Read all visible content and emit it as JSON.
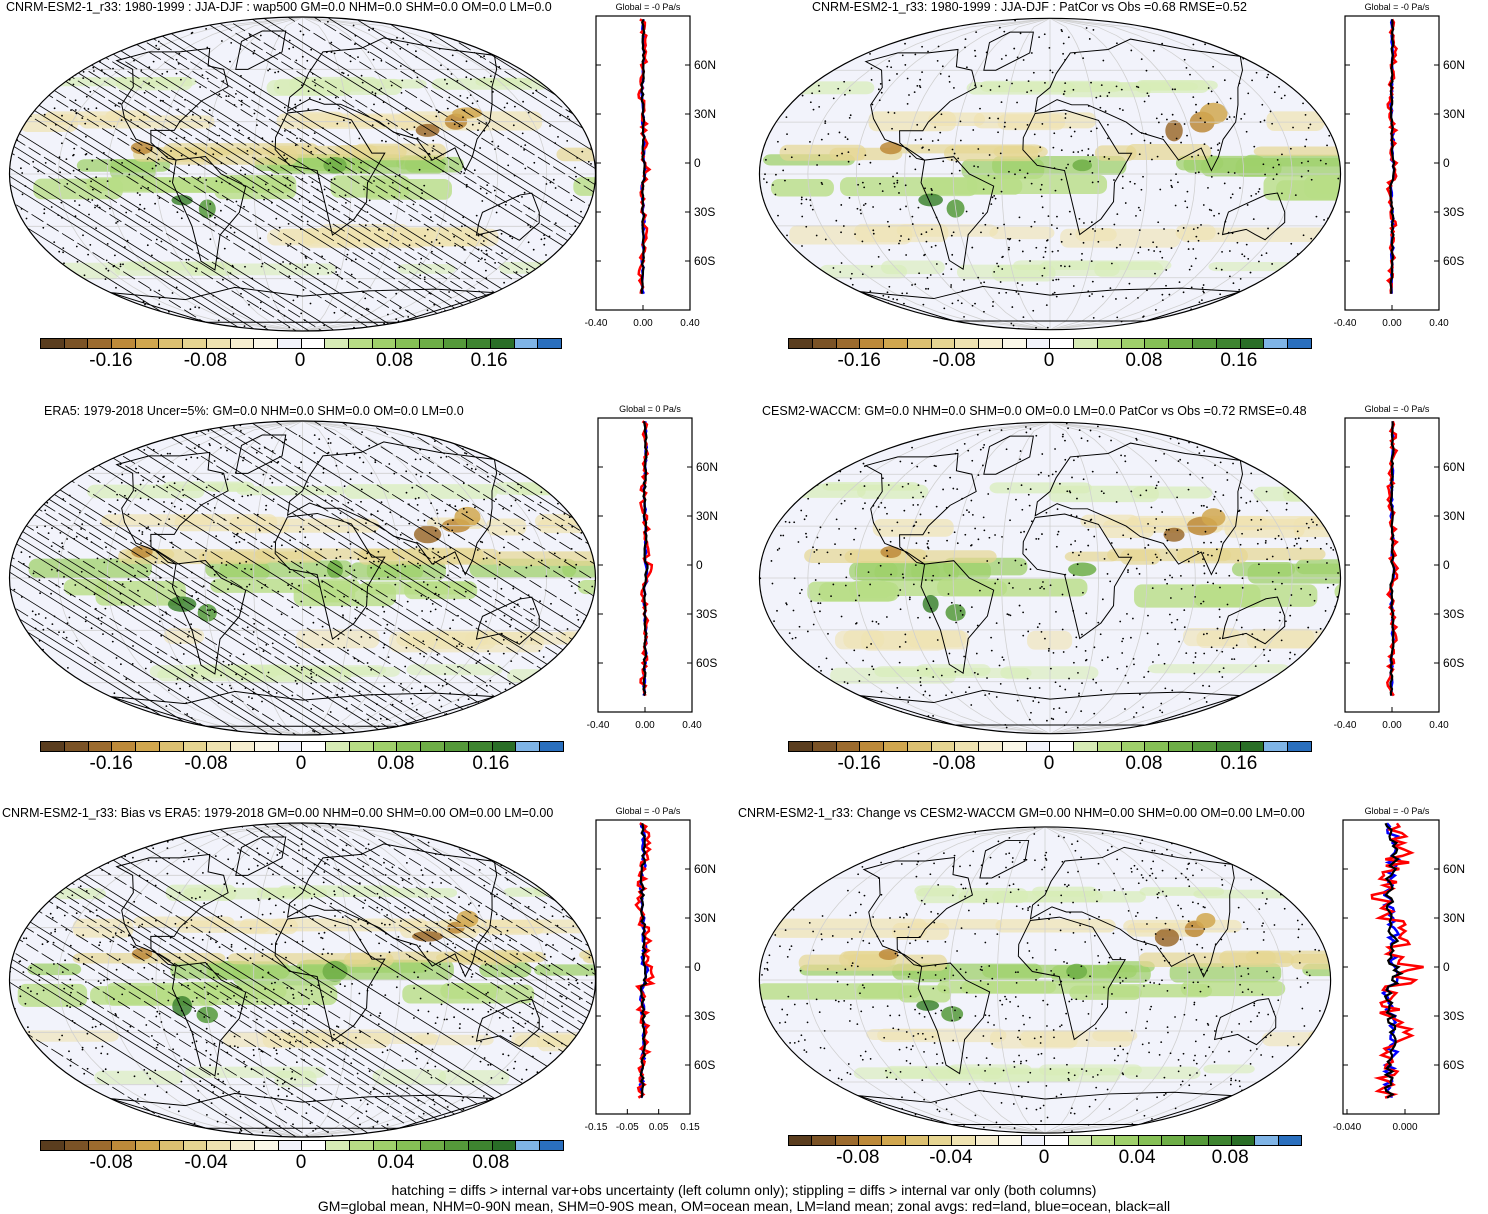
{
  "panels": [
    {
      "id": "p1",
      "title": "CNRM-ESM2-1_r33: 1980-1999 : JJA-DJF : wap500 GM=0.0 NHM=0.0 SHM=0.0 OM=0.0 LM=0.0",
      "zonal_title": "Global = -0 Pa/s",
      "zonal_xticks": [
        "-0.40",
        "0.00",
        "0.40"
      ],
      "lat_ticks": [
        "60N",
        "30N",
        "0",
        "30S",
        "60S"
      ],
      "cbar_labels": [
        "-0.16",
        "-0.08",
        "0",
        "0.08",
        "0.16"
      ],
      "hatched": true
    },
    {
      "id": "p2",
      "title": "CNRM-ESM2-1_r33: 1980-1999 : JJA-DJF : PatCor vs Obs =0.68 RMSE=0.52",
      "zonal_title": "Global = -0 Pa/s",
      "zonal_xticks": [
        "-0.40",
        "0.00",
        "0.40"
      ],
      "lat_ticks": [
        "60N",
        "30N",
        "0",
        "30S",
        "60S"
      ],
      "cbar_labels": [
        "-0.16",
        "-0.08",
        "0",
        "0.08",
        "0.16"
      ],
      "hatched": false
    },
    {
      "id": "p3",
      "title": "ERA5: 1979-2018 Uncer=5%: GM=0.0 NHM=0.0 SHM=0.0 OM=0.0 LM=0.0",
      "zonal_title": "Global = 0 Pa/s",
      "zonal_xticks": [
        "-0.40",
        "0.00",
        "0.40"
      ],
      "lat_ticks": [
        "60N",
        "30N",
        "0",
        "30S",
        "60S"
      ],
      "cbar_labels": [
        "-0.16",
        "-0.08",
        "0",
        "0.08",
        "0.16"
      ],
      "hatched": true
    },
    {
      "id": "p4",
      "title": "CESM2-WACCM: GM=0.0 NHM=0.0 SHM=0.0 OM=0.0 LM=0.0 PatCor vs Obs =0.72 RMSE=0.48",
      "zonal_title": "Global = -0 Pa/s",
      "zonal_xticks": [
        "-0.40",
        "0.00",
        "0.40"
      ],
      "lat_ticks": [
        "60N",
        "30N",
        "0",
        "30S",
        "60S"
      ],
      "cbar_labels": [
        "-0.16",
        "-0.08",
        "0",
        "0.08",
        "0.16"
      ],
      "hatched": false
    },
    {
      "id": "p5",
      "title": "CNRM-ESM2-1_r33: Bias vs ERA5: 1979-2018 GM=0.00 NHM=0.00 SHM=0.00 OM=0.00 LM=0.00",
      "zonal_title": "Global = -0 Pa/s",
      "zonal_xticks": [
        "-0.15",
        "-0.05",
        "0.05",
        "0.15"
      ],
      "lat_ticks": [
        "60N",
        "30N",
        "0",
        "30S",
        "60S"
      ],
      "cbar_labels": [
        "-0.08",
        "-0.04",
        "0",
        "0.04",
        "0.08"
      ],
      "hatched": true
    },
    {
      "id": "p6",
      "title": "CNRM-ESM2-1_r33: Change vs CESM2-WACCM GM=0.00 NHM=0.00 SHM=0.00 OM=0.00 LM=0.00",
      "zonal_title": "Global = -0 Pa/s",
      "zonal_xticks": [
        "-0.040",
        "0.000"
      ],
      "lat_ticks": [
        "60N",
        "30N",
        "0",
        "30S",
        "60S"
      ],
      "cbar_labels": [
        "-0.08",
        "-0.04",
        "0",
        "0.04",
        "0.08"
      ],
      "hatched": false
    }
  ],
  "colorbar_colors": [
    "#5a3d1e",
    "#7b5326",
    "#9c6b2e",
    "#bd8a3a",
    "#d1a74f",
    "#dcc071",
    "#e6d592",
    "#efe3b1",
    "#f6eed0",
    "#fbf8e9",
    "#f2f3fb",
    "#ffffff",
    "#d7ecb6",
    "#b8dd86",
    "#9fd06b",
    "#86c056",
    "#6eae47",
    "#55993a",
    "#3e8430",
    "#2a6e27",
    "#7fb4e6",
    "#2a6fbe"
  ],
  "legend_colors": {
    "land": "#ff0000",
    "ocean": "#0000ff",
    "all": "#000000"
  },
  "footer": {
    "line1": "hatching = diffs > internal var+obs uncertainty (left column only); stippling = diffs > internal var only (both columns)",
    "line2": "GM=global mean, NHM=0-90N mean, SHM=0-90S mean, OM=ocean mean, LM=land mean; zonal avgs: red=land, blue=ocean, black=all"
  }
}
